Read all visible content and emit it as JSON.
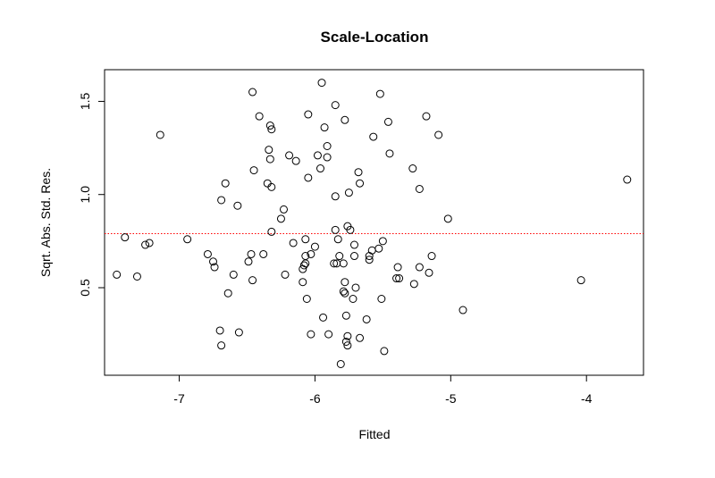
{
  "chart_data": {
    "type": "scatter",
    "title": "Scale-Location",
    "xlabel": "Fitted",
    "ylabel": "Sqrt. Abs. Std. Res.",
    "xlim": [
      -7.55,
      -3.58
    ],
    "ylim": [
      0.03,
      1.67
    ],
    "x_ticks": [
      -7,
      -6,
      -5,
      -4
    ],
    "x_tick_labels": [
      "-7",
      "-6",
      "-5",
      "-4"
    ],
    "y_ticks": [
      0.5,
      1.0,
      1.5
    ],
    "y_tick_labels": [
      "0.5",
      "1.0",
      "1.5"
    ],
    "grid": false,
    "legend": "none",
    "reference_line": {
      "y": 0.79,
      "color": "#ff0000",
      "style": "dotted"
    },
    "points": [
      [
        -7.46,
        0.57
      ],
      [
        -7.4,
        0.77
      ],
      [
        -7.31,
        0.56
      ],
      [
        -7.25,
        0.73
      ],
      [
        -7.22,
        0.74
      ],
      [
        -7.14,
        1.32
      ],
      [
        -6.94,
        0.76
      ],
      [
        -6.79,
        0.68
      ],
      [
        -6.75,
        0.64
      ],
      [
        -6.74,
        0.61
      ],
      [
        -6.7,
        0.27
      ],
      [
        -6.69,
        0.97
      ],
      [
        -6.69,
        0.19
      ],
      [
        -6.66,
        1.06
      ],
      [
        -6.64,
        0.47
      ],
      [
        -6.6,
        0.57
      ],
      [
        -6.57,
        0.94
      ],
      [
        -6.56,
        0.26
      ],
      [
        -6.49,
        0.64
      ],
      [
        -6.47,
        0.68
      ],
      [
        -6.46,
        0.54
      ],
      [
        -6.46,
        1.55
      ],
      [
        -6.45,
        1.13
      ],
      [
        -6.41,
        1.42
      ],
      [
        -6.38,
        0.68
      ],
      [
        -6.35,
        1.06
      ],
      [
        -6.34,
        1.24
      ],
      [
        -6.33,
        1.37
      ],
      [
        -6.33,
        1.19
      ],
      [
        -6.32,
        1.04
      ],
      [
        -6.32,
        0.8
      ],
      [
        -6.32,
        1.35
      ],
      [
        -6.25,
        0.87
      ],
      [
        -6.23,
        0.92
      ],
      [
        -6.22,
        0.57
      ],
      [
        -6.19,
        1.21
      ],
      [
        -6.16,
        0.74
      ],
      [
        -6.14,
        1.18
      ],
      [
        -6.09,
        0.6
      ],
      [
        -6.09,
        0.53
      ],
      [
        -6.08,
        0.62
      ],
      [
        -6.07,
        0.67
      ],
      [
        -6.07,
        0.76
      ],
      [
        -6.07,
        0.63
      ],
      [
        -6.06,
        0.44
      ],
      [
        -6.05,
        1.09
      ],
      [
        -6.05,
        1.43
      ],
      [
        -6.03,
        0.68
      ],
      [
        -6.03,
        0.25
      ],
      [
        -6.0,
        0.72
      ],
      [
        -5.98,
        1.21
      ],
      [
        -5.96,
        1.14
      ],
      [
        -5.95,
        1.6
      ],
      [
        -5.94,
        0.34
      ],
      [
        -5.93,
        1.36
      ],
      [
        -5.91,
        1.26
      ],
      [
        -5.91,
        1.2
      ],
      [
        -5.9,
        0.25
      ],
      [
        -5.86,
        0.63
      ],
      [
        -5.85,
        0.99
      ],
      [
        -5.85,
        0.81
      ],
      [
        -5.85,
        1.48
      ],
      [
        -5.84,
        0.63
      ],
      [
        -5.83,
        0.76
      ],
      [
        -5.82,
        0.67
      ],
      [
        -5.81,
        0.09
      ],
      [
        -5.79,
        0.63
      ],
      [
        -5.79,
        0.48
      ],
      [
        -5.78,
        0.47
      ],
      [
        -5.78,
        1.4
      ],
      [
        -5.78,
        0.53
      ],
      [
        -5.77,
        0.21
      ],
      [
        -5.77,
        0.35
      ],
      [
        -5.76,
        0.19
      ],
      [
        -5.76,
        0.24
      ],
      [
        -5.76,
        0.83
      ],
      [
        -5.75,
        1.01
      ],
      [
        -5.74,
        0.81
      ],
      [
        -5.72,
        0.44
      ],
      [
        -5.71,
        0.67
      ],
      [
        -5.71,
        0.73
      ],
      [
        -5.7,
        0.5
      ],
      [
        -5.68,
        1.12
      ],
      [
        -5.67,
        0.23
      ],
      [
        -5.67,
        1.06
      ],
      [
        -5.62,
        0.33
      ],
      [
        -5.6,
        0.65
      ],
      [
        -5.6,
        0.67
      ],
      [
        -5.58,
        0.7
      ],
      [
        -5.57,
        1.31
      ],
      [
        -5.53,
        0.71
      ],
      [
        -5.52,
        1.54
      ],
      [
        -5.51,
        0.44
      ],
      [
        -5.5,
        0.75
      ],
      [
        -5.49,
        0.16
      ],
      [
        -5.46,
        1.39
      ],
      [
        -5.45,
        1.22
      ],
      [
        -5.4,
        0.55
      ],
      [
        -5.39,
        0.61
      ],
      [
        -5.38,
        0.55
      ],
      [
        -5.28,
        1.14
      ],
      [
        -5.27,
        0.52
      ],
      [
        -5.23,
        0.61
      ],
      [
        -5.23,
        1.03
      ],
      [
        -5.18,
        1.42
      ],
      [
        -5.16,
        0.58
      ],
      [
        -5.14,
        0.67
      ],
      [
        -5.09,
        1.32
      ],
      [
        -5.02,
        0.87
      ],
      [
        -4.91,
        0.38
      ],
      [
        -4.04,
        0.54
      ],
      [
        -3.7,
        1.08
      ]
    ]
  }
}
